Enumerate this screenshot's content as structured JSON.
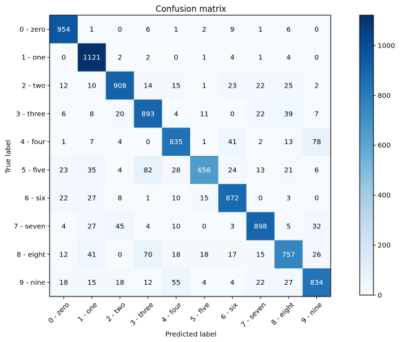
{
  "chart_data": {
    "type": "heatmap",
    "title": "Confusion matrix",
    "xlabel": "Predicted label",
    "ylabel": "True label",
    "x_categories": [
      "0 - zero",
      "1 - one",
      "2 - two",
      "3 - three",
      "4 - four",
      "5 - five",
      "6 - six",
      "7 - seven",
      "8 - eight",
      "9 - nine"
    ],
    "y_categories": [
      "0 - zero",
      "1 - one",
      "2 - two",
      "3 - three",
      "4 - four",
      "5 - five",
      "6 - six",
      "7 - seven",
      "8 - eight",
      "9 - nine"
    ],
    "values": [
      [
        954,
        1,
        0,
        6,
        1,
        2,
        9,
        1,
        6,
        0
      ],
      [
        0,
        1121,
        2,
        2,
        0,
        1,
        4,
        1,
        4,
        0
      ],
      [
        12,
        10,
        908,
        14,
        15,
        1,
        23,
        22,
        25,
        2
      ],
      [
        6,
        8,
        20,
        893,
        4,
        11,
        0,
        22,
        39,
        7
      ],
      [
        1,
        7,
        4,
        0,
        835,
        1,
        41,
        2,
        13,
        78
      ],
      [
        23,
        35,
        4,
        82,
        28,
        656,
        24,
        13,
        21,
        6
      ],
      [
        22,
        27,
        8,
        1,
        10,
        15,
        872,
        0,
        3,
        0
      ],
      [
        4,
        27,
        45,
        4,
        10,
        0,
        3,
        898,
        5,
        32
      ],
      [
        12,
        41,
        0,
        70,
        18,
        18,
        17,
        15,
        757,
        26
      ],
      [
        18,
        15,
        18,
        12,
        55,
        4,
        4,
        22,
        27,
        834
      ]
    ],
    "colormap": "Blues",
    "color_range": [
      0,
      1121
    ],
    "colorbar_ticks": [
      0,
      200,
      400,
      600,
      800,
      1000
    ],
    "text_color_light": "#ffffff",
    "text_color_dark": "#000000",
    "grid": false
  }
}
